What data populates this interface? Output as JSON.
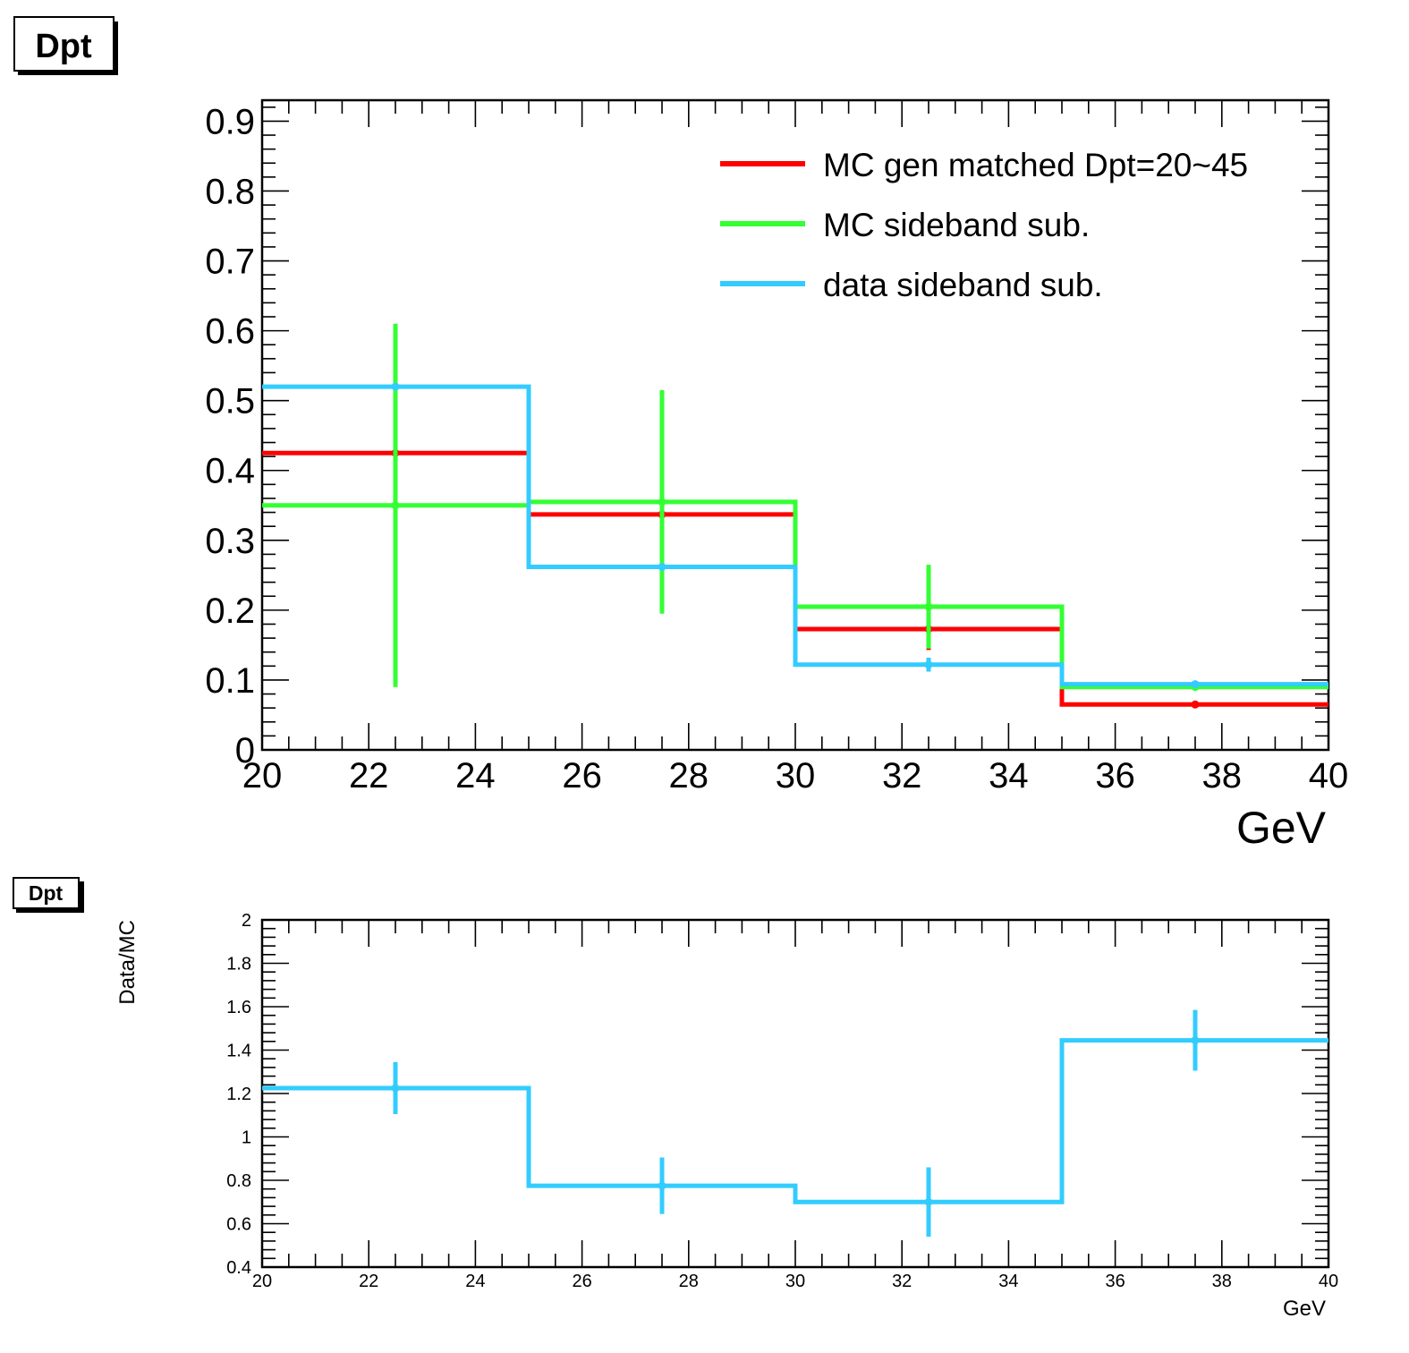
{
  "chart_data": [
    {
      "type": "line",
      "title": "Dpt",
      "xlabel": "GeV",
      "ylabel": "",
      "xlim": [
        20,
        40
      ],
      "ylim": [
        0,
        0.93
      ],
      "x_ticks": [
        "20",
        "22",
        "24",
        "26",
        "28",
        "30",
        "32",
        "34",
        "36",
        "38",
        "40"
      ],
      "y_ticks": [
        "0",
        "0.1",
        "0.2",
        "0.3",
        "0.4",
        "0.5",
        "0.6",
        "0.7",
        "0.8",
        "0.9"
      ],
      "bin_edges": [
        20,
        25,
        30,
        35,
        40
      ],
      "legend_position": "top-right",
      "series": [
        {
          "name": "MC gen matched Dpt=20~45",
          "color": "#ff0000",
          "values": [
            0.425,
            0.337,
            0.173,
            0.065
          ],
          "errors": [
            0.0,
            0.0,
            0.03,
            0.0
          ]
        },
        {
          "name": "MC sideband sub.",
          "color": "#33ff33",
          "values": [
            0.35,
            0.355,
            0.205,
            0.09
          ],
          "errors": [
            0.26,
            0.16,
            0.06,
            0.0
          ]
        },
        {
          "name": "data sideband sub.",
          "color": "#33ccff",
          "values": [
            0.52,
            0.262,
            0.122,
            0.094
          ],
          "errors": [
            0.0,
            0.0,
            0.01,
            0.0
          ]
        }
      ]
    },
    {
      "type": "line",
      "title": "Dpt",
      "xlabel": "GeV",
      "ylabel": "Data/MC",
      "xlim": [
        20,
        40
      ],
      "ylim": [
        0.4,
        2.0
      ],
      "x_ticks": [
        "20",
        "22",
        "24",
        "26",
        "28",
        "30",
        "32",
        "34",
        "36",
        "38",
        "40"
      ],
      "y_ticks": [
        "0.4",
        "0.6",
        "0.8",
        "1",
        "1.2",
        "1.4",
        "1.6",
        "1.8",
        "2"
      ],
      "bin_edges": [
        20,
        25,
        30,
        35,
        40
      ],
      "series": [
        {
          "color": "#33ccff",
          "values": [
            1.225,
            0.775,
            0.7,
            1.445
          ],
          "errors": [
            0.12,
            0.13,
            0.16,
            0.14
          ]
        }
      ]
    }
  ]
}
